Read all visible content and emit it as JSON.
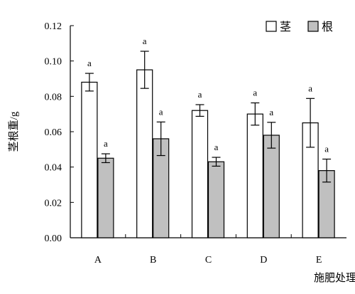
{
  "chart_data": {
    "type": "bar",
    "title": "",
    "xlabel": "施肥处理",
    "ylabel": "茎根重/g",
    "ylim": [
      0,
      0.12
    ],
    "yticks": [
      "0.00",
      "0.02",
      "0.04",
      "0.06",
      "0.08",
      "0.10",
      "0.12"
    ],
    "categories": [
      "A",
      "B",
      "C",
      "D",
      "E"
    ],
    "grid": false,
    "legend_position": "top-right",
    "series": [
      {
        "name": "茎",
        "color": "#ffffff",
        "values": [
          0.088,
          0.095,
          0.072,
          0.07,
          0.065
        ],
        "errors": [
          0.005,
          0.0105,
          0.0033,
          0.0063,
          0.0138
        ],
        "labels": [
          "a",
          "a",
          "a",
          "a",
          "a"
        ]
      },
      {
        "name": "根",
        "color": "#c0c0c0",
        "values": [
          0.045,
          0.056,
          0.043,
          0.058,
          0.038
        ],
        "errors": [
          0.0025,
          0.0095,
          0.0025,
          0.0073,
          0.0065
        ],
        "labels": [
          "a",
          "a",
          "a",
          "a",
          "a"
        ]
      }
    ]
  }
}
